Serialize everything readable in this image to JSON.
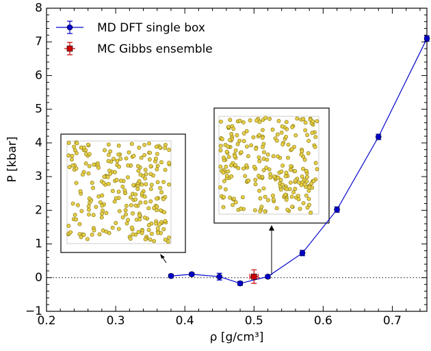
{
  "chart_data": {
    "type": "line",
    "x_label": "ρ [g/cm³]",
    "y_label": "P [kbar]",
    "xlim": [
      0.2,
      0.75
    ],
    "xticks": [
      0.2,
      0.3,
      0.4,
      0.5,
      0.6,
      0.7
    ],
    "ylim": [
      -1,
      8
    ],
    "yticks": [
      {
        "value": -1,
        "label": "−1"
      },
      0,
      1,
      2,
      3,
      4,
      5,
      6,
      7,
      8
    ],
    "legend": "upper left",
    "series": [
      {
        "name": "MD DFT single box",
        "color": "#0000cc",
        "marker": "circle",
        "x": [
          0.38,
          0.41,
          0.45,
          0.48,
          0.52,
          0.57,
          0.62,
          0.68,
          0.75
        ],
        "values": [
          0.05,
          0.1,
          0.03,
          -0.17,
          0.03,
          0.73,
          2.02,
          4.18,
          7.1
        ],
        "errors": [
          0.05,
          0.05,
          0.1,
          0.06,
          0.05,
          0.08,
          0.08,
          0.08,
          0.08
        ]
      },
      {
        "name": "MC Gibbs ensemble",
        "color": "#cc0000",
        "marker": "square",
        "x": [
          0.5
        ],
        "values": [
          0.03
        ],
        "errors": [
          0.2
        ],
        "xerrors": [
          0.006
        ]
      }
    ]
  }
}
